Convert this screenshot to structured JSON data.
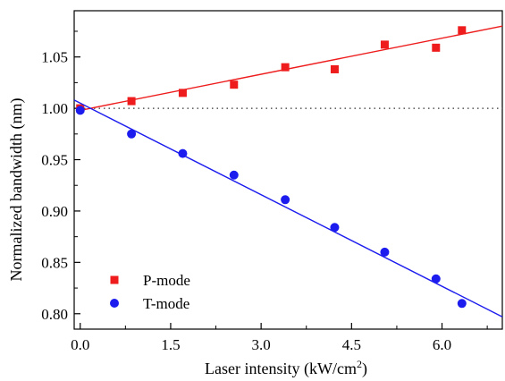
{
  "chart_data": {
    "type": "scatter",
    "xlabel": "Laser intensity (kW/cm",
    "xlabel_sup": "2",
    "xlabel_suffix": ")",
    "ylabel": "Normalized bandwidth (nm)",
    "xlim": [
      -0.1,
      7.0
    ],
    "ylim": [
      0.785,
      1.095
    ],
    "xticks": [
      0.0,
      1.5,
      3.0,
      4.5,
      6.0
    ],
    "xtick_labels": [
      "0.0",
      "1.5",
      "3.0",
      "4.5",
      "6.0"
    ],
    "yticks": [
      0.8,
      0.85,
      0.9,
      0.95,
      1.0,
      1.05
    ],
    "ytick_labels": [
      "0.80",
      "0.85",
      "0.90",
      "0.95",
      "1.00",
      "1.05"
    ],
    "reference_line": {
      "y": 1.0,
      "style": "dotted"
    },
    "grid": false,
    "legend_position": "bottom-left",
    "series": [
      {
        "name": "P-mode",
        "marker": "square",
        "color": "#ee1c1c",
        "x": [
          0.0,
          0.85,
          1.7,
          2.55,
          3.4,
          4.22,
          5.05,
          5.9,
          6.33
        ],
        "y": [
          1.0,
          1.007,
          1.015,
          1.023,
          1.04,
          1.038,
          1.062,
          1.059,
          1.076
        ],
        "fit": {
          "x0": 0.0,
          "y0": 0.998,
          "x1": 7.0,
          "y1": 1.08
        }
      },
      {
        "name": "T-mode",
        "marker": "circle",
        "color": "#1c1cee",
        "x": [
          0.0,
          0.85,
          1.7,
          2.55,
          3.4,
          4.22,
          5.05,
          5.9,
          6.33
        ],
        "y": [
          0.998,
          0.975,
          0.956,
          0.935,
          0.911,
          0.884,
          0.86,
          0.834,
          0.81
        ],
        "fit": {
          "x0": -0.1,
          "y0": 1.008,
          "x1": 7.0,
          "y1": 0.797
        }
      }
    ]
  }
}
